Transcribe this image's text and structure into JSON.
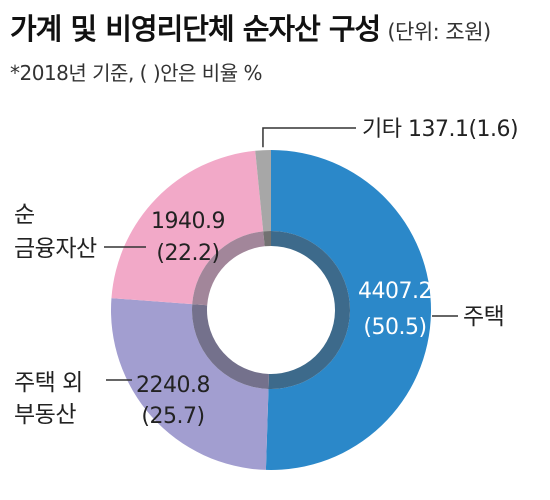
{
  "header": {
    "title": "가계 및 비영리단체 순자산 구성",
    "unit": "(단위: 조원)",
    "note": "*2018년 기준, ( )안은 비율 %"
  },
  "chart_data": {
    "type": "pie",
    "variant": "donut",
    "start": "top, clockwise",
    "slices": [
      {
        "label": "주택",
        "value": 4407.2,
        "percent": 50.5,
        "value_text": "4407.2",
        "percent_text": "(50.5)",
        "color": "#2b88c9",
        "inner_color": "#3d6a8b"
      },
      {
        "label": "주택 외 부동산",
        "label_lines": [
          "주택 외",
          "부동산"
        ],
        "value": 2240.8,
        "percent": 25.7,
        "value_text": "2240.8",
        "percent_text": "(25.7)",
        "color": "#a29ed0",
        "inner_color": "#74718c"
      },
      {
        "label": "순 금융자산",
        "label_lines": [
          "순",
          "금융자산"
        ],
        "value": 1940.9,
        "percent": 22.2,
        "value_text": "1940.9",
        "percent_text": "(22.2)",
        "color": "#f2a9c8",
        "inner_color": "#a2869a"
      },
      {
        "label": "기타",
        "value": 137.1,
        "percent": 1.6,
        "callout_text": "기타 137.1(1.6)",
        "color": "#a7a7a7",
        "inner_color": "#727272"
      }
    ]
  }
}
